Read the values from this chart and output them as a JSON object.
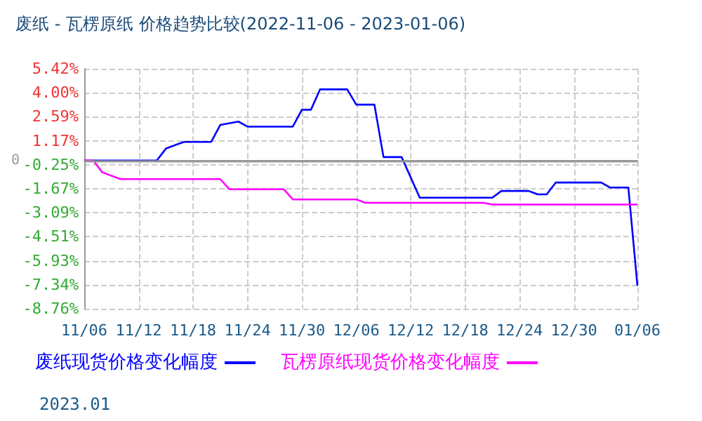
{
  "chart_data": {
    "type": "line",
    "title": "废纸 - 瓦楞原纸 价格趋势比较(2022-11-06 - 2023-01-06)",
    "xlim": [
      "2022-11-06",
      "2023-01-06"
    ],
    "xticks": [
      {
        "value": "2022-11-06",
        "label": "11/06"
      },
      {
        "value": "2022-11-12",
        "label": "11/12"
      },
      {
        "value": "2022-11-18",
        "label": "11/18"
      },
      {
        "value": "2022-11-24",
        "label": "11/24"
      },
      {
        "value": "2022-11-30",
        "label": "11/30"
      },
      {
        "value": "2022-12-06",
        "label": "12/06"
      },
      {
        "value": "2022-12-12",
        "label": "12/12"
      },
      {
        "value": "2022-12-18",
        "label": "12/18"
      },
      {
        "value": "2022-12-24",
        "label": "12/24"
      },
      {
        "value": "2022-12-30",
        "label": "12/30"
      },
      {
        "value": "2023-01-06",
        "label": "01/06"
      }
    ],
    "ylim": [
      -8.76,
      5.42
    ],
    "yticks": [
      {
        "value": 5.42,
        "label": "5.42%"
      },
      {
        "value": 4.0,
        "label": "4.00%"
      },
      {
        "value": 2.59,
        "label": "2.59%"
      },
      {
        "value": 1.17,
        "label": "1.17%"
      },
      {
        "value": -0.25,
        "label": "-0.25%"
      },
      {
        "value": -1.67,
        "label": "-1.67%"
      },
      {
        "value": -3.09,
        "label": "-3.09%"
      },
      {
        "value": -4.51,
        "label": "-4.51%"
      },
      {
        "value": -5.93,
        "label": "-5.93%"
      },
      {
        "value": -7.34,
        "label": "-7.34%"
      },
      {
        "value": -8.76,
        "label": "-8.76%"
      }
    ],
    "series": [
      {
        "name": "废纸现货价格变化幅度",
        "color": "#0000ff",
        "x": [
          "2022-11-06",
          "2022-11-14",
          "2022-11-15",
          "2022-11-17",
          "2022-11-20",
          "2022-11-21",
          "2022-11-23",
          "2022-11-24",
          "2022-11-29",
          "2022-11-30",
          "2022-12-01",
          "2022-12-02",
          "2022-12-05",
          "2022-12-06",
          "2022-12-08",
          "2022-12-09",
          "2022-12-11",
          "2022-12-13",
          "2022-12-21",
          "2022-12-22",
          "2022-12-25",
          "2022-12-26",
          "2022-12-27",
          "2022-12-28",
          "2023-01-02",
          "2023-01-03",
          "2023-01-05",
          "2023-01-06"
        ],
        "values": [
          0,
          0,
          0.7,
          1.1,
          1.1,
          2.1,
          2.3,
          2.0,
          2.0,
          3.0,
          3.0,
          4.2,
          4.2,
          3.3,
          3.3,
          0.2,
          0.2,
          -2.2,
          -2.2,
          -1.8,
          -1.8,
          -2.0,
          -2.0,
          -1.3,
          -1.3,
          -1.6,
          -1.6,
          -7.4
        ]
      },
      {
        "name": "瓦楞原纸现货价格变化幅度",
        "color": "#ff00ff",
        "x": [
          "2022-11-06",
          "2022-11-07",
          "2022-11-08",
          "2022-11-10",
          "2022-11-21",
          "2022-11-22",
          "2022-11-28",
          "2022-11-29",
          "2022-12-06",
          "2022-12-07",
          "2022-12-20",
          "2022-12-21",
          "2023-01-06"
        ],
        "values": [
          0,
          0,
          -0.7,
          -1.1,
          -1.1,
          -1.7,
          -1.7,
          -2.3,
          -2.3,
          -2.5,
          -2.5,
          -2.6,
          -2.6
        ]
      }
    ],
    "ref_lines": [
      {
        "axis": "y",
        "value": 0,
        "label": "0",
        "color": "#999999"
      }
    ],
    "grid": true,
    "legend": "bottom",
    "marker": "none",
    "line_style": "solid",
    "annotations": [
      "2023.01"
    ]
  }
}
